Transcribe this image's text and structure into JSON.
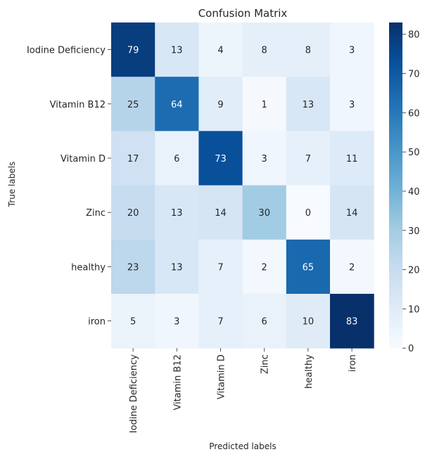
{
  "chart_data": {
    "type": "heatmap",
    "title": "Confusion Matrix",
    "xlabel": "Predicted labels",
    "ylabel": "True labels",
    "x_categories": [
      "Iodine Deficiency",
      "Vitamin B12",
      "Vitamin D",
      "Zinc",
      "healthy",
      "iron"
    ],
    "y_categories": [
      "Iodine Deficiency",
      "Vitamin B12",
      "Vitamin D",
      "Zinc",
      "healthy",
      "iron"
    ],
    "values": [
      [
        79,
        13,
        4,
        8,
        8,
        3
      ],
      [
        25,
        64,
        9,
        1,
        13,
        3
      ],
      [
        17,
        6,
        73,
        3,
        7,
        11
      ],
      [
        20,
        13,
        14,
        30,
        0,
        14
      ],
      [
        23,
        13,
        7,
        2,
        65,
        2
      ],
      [
        5,
        3,
        7,
        6,
        10,
        83
      ]
    ],
    "colormap": "Blues",
    "value_range": [
      0,
      83
    ],
    "colorbar": {
      "ticks": [
        0,
        10,
        20,
        30,
        40,
        50,
        60,
        70,
        80
      ],
      "tick_labels": [
        "0",
        "10",
        "20",
        "30",
        "40",
        "50",
        "60",
        "70",
        "80"
      ]
    },
    "grid": false,
    "legend": "none"
  }
}
